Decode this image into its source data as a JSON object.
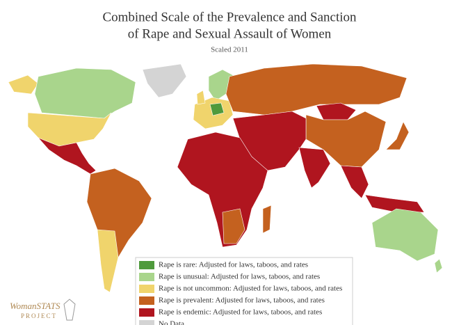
{
  "title_lines": [
    "Combined Scale of the Prevalence and Sanction",
    "of Rape and Sexual Assault of Women"
  ],
  "subtitle": "Scaled 2011",
  "legend": [
    {
      "label": "Rape is rare: Adjusted for laws, taboos, and rates",
      "color": "#4f9a3c"
    },
    {
      "label": "Rape is unusual: Adjusted for laws, taboos, and rates",
      "color": "#a9d58c"
    },
    {
      "label": "Rape is not uncommon: Adjusted for laws, taboos, and rates",
      "color": "#f0d46c"
    },
    {
      "label": "Rape is prevalent: Adjusted for laws, taboos, and rates",
      "color": "#c4611f"
    },
    {
      "label": "Rape is endemic: Adjusted for laws, taboos, and rates",
      "color": "#b0151f"
    },
    {
      "label": "No Data",
      "color": "#d4d4d4"
    }
  ],
  "logo": {
    "name": "WomanSTATS",
    "sub": "PROJECT"
  }
}
